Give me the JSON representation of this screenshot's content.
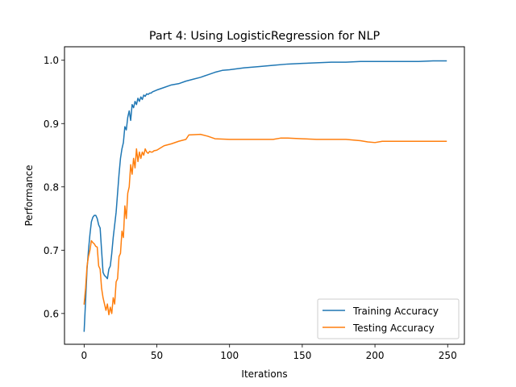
{
  "chart_data": {
    "type": "line",
    "title": "Part 4: Using LogisticRegression for NLP",
    "xlabel": "Iterations",
    "ylabel": "Performance",
    "xlim": [
      -13.5,
      261.5
    ],
    "ylim": [
      0.5514,
      1.0213
    ],
    "xticks": [
      0,
      50,
      100,
      150,
      200,
      250
    ],
    "yticks": [
      0.6,
      0.7,
      0.8,
      0.9,
      1.0
    ],
    "xtick_labels": [
      "0",
      "50",
      "100",
      "150",
      "200",
      "250"
    ],
    "ytick_labels": [
      "0.6",
      "0.7",
      "0.8",
      "0.9",
      "1.0"
    ],
    "grid": false,
    "legend_position": "lower-right",
    "series": [
      {
        "name": "Training Accuracy",
        "color": "#1f77b4",
        "points": [
          [
            0,
            0.572
          ],
          [
            1,
            0.62
          ],
          [
            2,
            0.67
          ],
          [
            3,
            0.7
          ],
          [
            4,
            0.725
          ],
          [
            5,
            0.745
          ],
          [
            6,
            0.752
          ],
          [
            7,
            0.755
          ],
          [
            8,
            0.755
          ],
          [
            9,
            0.75
          ],
          [
            10,
            0.74
          ],
          [
            11,
            0.735
          ],
          [
            12,
            0.7
          ],
          [
            13,
            0.665
          ],
          [
            14,
            0.66
          ],
          [
            15,
            0.658
          ],
          [
            16,
            0.655
          ],
          [
            17,
            0.67
          ],
          [
            18,
            0.675
          ],
          [
            19,
            0.695
          ],
          [
            20,
            0.72
          ],
          [
            21,
            0.74
          ],
          [
            22,
            0.76
          ],
          [
            23,
            0.79
          ],
          [
            24,
            0.82
          ],
          [
            25,
            0.845
          ],
          [
            26,
            0.86
          ],
          [
            27,
            0.87
          ],
          [
            28,
            0.895
          ],
          [
            29,
            0.89
          ],
          [
            30,
            0.91
          ],
          [
            31,
            0.92
          ],
          [
            32,
            0.905
          ],
          [
            33,
            0.93
          ],
          [
            34,
            0.925
          ],
          [
            35,
            0.935
          ],
          [
            36,
            0.93
          ],
          [
            37,
            0.94
          ],
          [
            38,
            0.935
          ],
          [
            39,
            0.942
          ],
          [
            40,
            0.938
          ],
          [
            41,
            0.945
          ],
          [
            42,
            0.943
          ],
          [
            43,
            0.947
          ],
          [
            44,
            0.946
          ],
          [
            45,
            0.948
          ],
          [
            46,
            0.948
          ],
          [
            47,
            0.95
          ],
          [
            48,
            0.951
          ],
          [
            50,
            0.953
          ],
          [
            55,
            0.957
          ],
          [
            60,
            0.961
          ],
          [
            65,
            0.963
          ],
          [
            70,
            0.967
          ],
          [
            75,
            0.97
          ],
          [
            80,
            0.973
          ],
          [
            85,
            0.977
          ],
          [
            90,
            0.981
          ],
          [
            95,
            0.984
          ],
          [
            100,
            0.985
          ],
          [
            110,
            0.988
          ],
          [
            120,
            0.99
          ],
          [
            130,
            0.992
          ],
          [
            140,
            0.994
          ],
          [
            150,
            0.995
          ],
          [
            160,
            0.996
          ],
          [
            170,
            0.997
          ],
          [
            180,
            0.997
          ],
          [
            190,
            0.998
          ],
          [
            200,
            0.998
          ],
          [
            210,
            0.998
          ],
          [
            220,
            0.998
          ],
          [
            230,
            0.998
          ],
          [
            240,
            0.999
          ],
          [
            249,
            0.999
          ]
        ]
      },
      {
        "name": "Testing Accuracy",
        "color": "#ff7f0e",
        "points": [
          [
            0,
            0.615
          ],
          [
            1,
            0.64
          ],
          [
            2,
            0.675
          ],
          [
            3,
            0.69
          ],
          [
            4,
            0.7
          ],
          [
            5,
            0.715
          ],
          [
            6,
            0.712
          ],
          [
            7,
            0.71
          ],
          [
            8,
            0.706
          ],
          [
            9,
            0.705
          ],
          [
            10,
            0.675
          ],
          [
            11,
            0.67
          ],
          [
            12,
            0.64
          ],
          [
            13,
            0.625
          ],
          [
            14,
            0.615
          ],
          [
            15,
            0.605
          ],
          [
            16,
            0.615
          ],
          [
            17,
            0.598
          ],
          [
            18,
            0.61
          ],
          [
            19,
            0.6
          ],
          [
            20,
            0.625
          ],
          [
            21,
            0.615
          ],
          [
            22,
            0.65
          ],
          [
            23,
            0.655
          ],
          [
            24,
            0.69
          ],
          [
            25,
            0.695
          ],
          [
            26,
            0.73
          ],
          [
            27,
            0.72
          ],
          [
            28,
            0.77
          ],
          [
            29,
            0.75
          ],
          [
            30,
            0.79
          ],
          [
            31,
            0.8
          ],
          [
            32,
            0.835
          ],
          [
            33,
            0.82
          ],
          [
            34,
            0.845
          ],
          [
            35,
            0.83
          ],
          [
            36,
            0.86
          ],
          [
            37,
            0.84
          ],
          [
            38,
            0.855
          ],
          [
            39,
            0.845
          ],
          [
            40,
            0.855
          ],
          [
            41,
            0.85
          ],
          [
            42,
            0.86
          ],
          [
            43,
            0.855
          ],
          [
            44,
            0.853
          ],
          [
            45,
            0.856
          ],
          [
            46,
            0.855
          ],
          [
            47,
            0.855
          ],
          [
            48,
            0.857
          ],
          [
            50,
            0.858
          ],
          [
            55,
            0.865
          ],
          [
            60,
            0.868
          ],
          [
            65,
            0.872
          ],
          [
            70,
            0.875
          ],
          [
            72,
            0.882
          ],
          [
            80,
            0.883
          ],
          [
            85,
            0.88
          ],
          [
            90,
            0.876
          ],
          [
            100,
            0.875
          ],
          [
            110,
            0.875
          ],
          [
            120,
            0.875
          ],
          [
            130,
            0.875
          ],
          [
            135,
            0.877
          ],
          [
            140,
            0.877
          ],
          [
            150,
            0.876
          ],
          [
            160,
            0.875
          ],
          [
            170,
            0.875
          ],
          [
            180,
            0.875
          ],
          [
            190,
            0.873
          ],
          [
            195,
            0.871
          ],
          [
            200,
            0.87
          ],
          [
            205,
            0.872
          ],
          [
            210,
            0.872
          ],
          [
            220,
            0.872
          ],
          [
            230,
            0.872
          ],
          [
            240,
            0.872
          ],
          [
            249,
            0.872
          ]
        ]
      }
    ]
  }
}
